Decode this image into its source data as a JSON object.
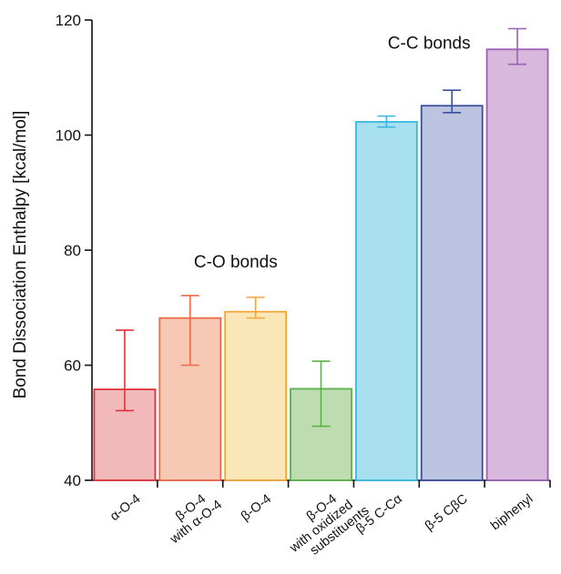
{
  "chart_data": {
    "type": "bar",
    "ylabel": "Bond Dissociation Enthalpy [kcal/mol]",
    "ylim": [
      40,
      120
    ],
    "yticks": [
      40,
      60,
      80,
      100,
      120
    ],
    "grid": false,
    "categories": [
      {
        "lines": [
          "α-O-4"
        ]
      },
      {
        "lines": [
          "β-O-4",
          "with α-O-4"
        ]
      },
      {
        "lines": [
          "β-O-4"
        ]
      },
      {
        "lines": [
          "β-O-4",
          "with oxidized",
          "substituents"
        ]
      },
      {
        "lines": [
          "β-5 C-Cα"
        ]
      },
      {
        "lines": [
          "β-5 CβC"
        ]
      },
      {
        "lines": [
          "biphenyl"
        ]
      }
    ],
    "values": [
      55.8,
      68.2,
      69.3,
      55.9,
      102.3,
      105.1,
      114.9
    ],
    "error_high": [
      66.1,
      72.1,
      71.8,
      60.7,
      103.3,
      107.8,
      118.5
    ],
    "error_low": [
      52.1,
      60.0,
      68.2,
      49.4,
      101.4,
      103.9,
      112.3
    ],
    "bar_fill_colors": [
      "#f2b9bb",
      "#f7c9b4",
      "#fbe6b8",
      "#bddcb0",
      "#a9e0ef",
      "#bcc4e2",
      "#d8b8dc"
    ],
    "bar_edge_colors": [
      "#e0323a",
      "#ea6a4a",
      "#f3a53a",
      "#5db04a",
      "#38b8e2",
      "#3a4f9a",
      "#9a62b0"
    ],
    "annotations": [
      {
        "text": "C-O bonds",
        "anchor_category": 1
      },
      {
        "text": "C-C bonds",
        "anchor_category": 5
      }
    ]
  }
}
